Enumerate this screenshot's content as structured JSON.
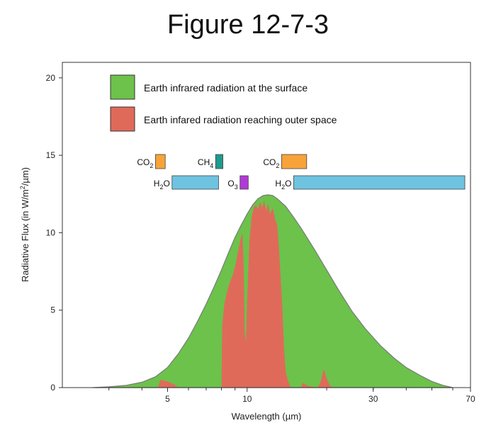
{
  "title": "Figure 12-7-3",
  "chart_data": {
    "type": "area",
    "xlabel": "Wavelength (µm)",
    "ylabel_prefix": "Radiative Flux (in W/m",
    "ylabel_sup": "2",
    "ylabel_suffix": "/µm)",
    "x_scale": "log",
    "xlim": [
      2,
      70
    ],
    "ylim": [
      0,
      21
    ],
    "x_ticks": [
      5,
      10,
      30,
      70
    ],
    "y_ticks": [
      0,
      5,
      10,
      15,
      20
    ],
    "colors": {
      "surface": "#6cc24a",
      "space": "#e06a5a",
      "orange": "#f7a33a",
      "teal": "#1f9a8c",
      "blue": "#6ec3e0",
      "purple": "#b03ad6"
    },
    "series": [
      {
        "name": "Earth infrared radiation at the surface",
        "color": "#6cc24a",
        "points": [
          [
            2.6,
            0
          ],
          [
            3,
            0.05
          ],
          [
            3.5,
            0.15
          ],
          [
            4,
            0.35
          ],
          [
            4.5,
            0.7
          ],
          [
            5,
            1.3
          ],
          [
            5.5,
            2.2
          ],
          [
            6,
            3.2
          ],
          [
            6.5,
            4.3
          ],
          [
            7,
            5.4
          ],
          [
            7.5,
            6.5
          ],
          [
            8,
            7.6
          ],
          [
            8.5,
            8.7
          ],
          [
            9,
            9.7
          ],
          [
            9.5,
            10.5
          ],
          [
            10,
            11.2
          ],
          [
            10.5,
            11.8
          ],
          [
            11,
            12.2
          ],
          [
            11.5,
            12.4
          ],
          [
            12,
            12.45
          ],
          [
            12.5,
            12.4
          ],
          [
            13,
            12.2
          ],
          [
            14,
            11.7
          ],
          [
            15,
            11.0
          ],
          [
            16,
            10.3
          ],
          [
            18,
            8.9
          ],
          [
            20,
            7.6
          ],
          [
            22,
            6.4
          ],
          [
            25,
            4.9
          ],
          [
            28,
            3.8
          ],
          [
            32,
            2.7
          ],
          [
            36,
            1.9
          ],
          [
            40,
            1.3
          ],
          [
            45,
            0.8
          ],
          [
            50,
            0.4
          ],
          [
            55,
            0.15
          ],
          [
            60,
            0
          ]
        ]
      },
      {
        "name": "Earth infared radiation reaching outer space",
        "color": "#e06a5a",
        "points": [
          [
            4.6,
            0
          ],
          [
            4.7,
            0.5
          ],
          [
            5,
            0.4
          ],
          [
            5.3,
            0.2
          ],
          [
            5.5,
            0
          ],
          [
            8,
            0
          ],
          [
            8.05,
            4
          ],
          [
            8.2,
            5.4
          ],
          [
            8.4,
            6.2
          ],
          [
            8.6,
            6.8
          ],
          [
            8.8,
            7.2
          ],
          [
            9.0,
            7.8
          ],
          [
            9.2,
            8.6
          ],
          [
            9.4,
            9.4
          ],
          [
            9.6,
            10.0
          ],
          [
            9.7,
            8.0
          ],
          [
            9.8,
            3.5
          ],
          [
            9.9,
            3.0
          ],
          [
            10.0,
            5.5
          ],
          [
            10.2,
            9.5
          ],
          [
            10.4,
            11.0
          ],
          [
            10.6,
            11.6
          ],
          [
            10.8,
            11.8
          ],
          [
            11.0,
            11.5
          ],
          [
            11.2,
            12.0
          ],
          [
            11.4,
            11.6
          ],
          [
            11.6,
            12.1
          ],
          [
            11.8,
            11.4
          ],
          [
            12.0,
            11.9
          ],
          [
            12.2,
            11.2
          ],
          [
            12.5,
            11.6
          ],
          [
            12.8,
            10.8
          ],
          [
            13.0,
            10.5
          ],
          [
            13.2,
            9.0
          ],
          [
            13.4,
            7.0
          ],
          [
            13.6,
            5.0
          ],
          [
            13.8,
            2.5
          ],
          [
            14.0,
            1.0
          ],
          [
            14.3,
            0.4
          ],
          [
            14.6,
            0
          ],
          [
            16,
            0
          ],
          [
            16.2,
            0.3
          ],
          [
            17,
            0.1
          ],
          [
            18.5,
            0
          ],
          [
            19.0,
            0.4
          ],
          [
            19.5,
            1.2
          ],
          [
            20.0,
            0.6
          ],
          [
            20.5,
            0.2
          ],
          [
            21,
            0
          ]
        ]
      }
    ],
    "absorption_bands": [
      {
        "label": "CO",
        "sub": "2",
        "x_start": 4.5,
        "x_end": 4.9,
        "row": 1,
        "color": "#f7a33a"
      },
      {
        "label": "CH",
        "sub": "4",
        "x_start": 7.6,
        "x_end": 8.1,
        "row": 1,
        "color": "#1f9a8c"
      },
      {
        "label": "CO",
        "sub": "2",
        "x_start": 13.5,
        "x_end": 16.8,
        "row": 1,
        "color": "#f7a33a"
      },
      {
        "label": "H",
        "sub": "2",
        "label_suffix": "O",
        "x_start": 5.2,
        "x_end": 7.8,
        "row": 2,
        "color": "#6ec3e0"
      },
      {
        "label": "O",
        "sub": "3",
        "x_start": 9.4,
        "x_end": 10.1,
        "row": 2,
        "color": "#b03ad6"
      },
      {
        "label": "H",
        "sub": "2",
        "label_suffix": "O",
        "x_start": 15.0,
        "x_end": 70,
        "row": 2,
        "color": "#6ec3e0"
      }
    ],
    "legend_placement": "top-left"
  }
}
